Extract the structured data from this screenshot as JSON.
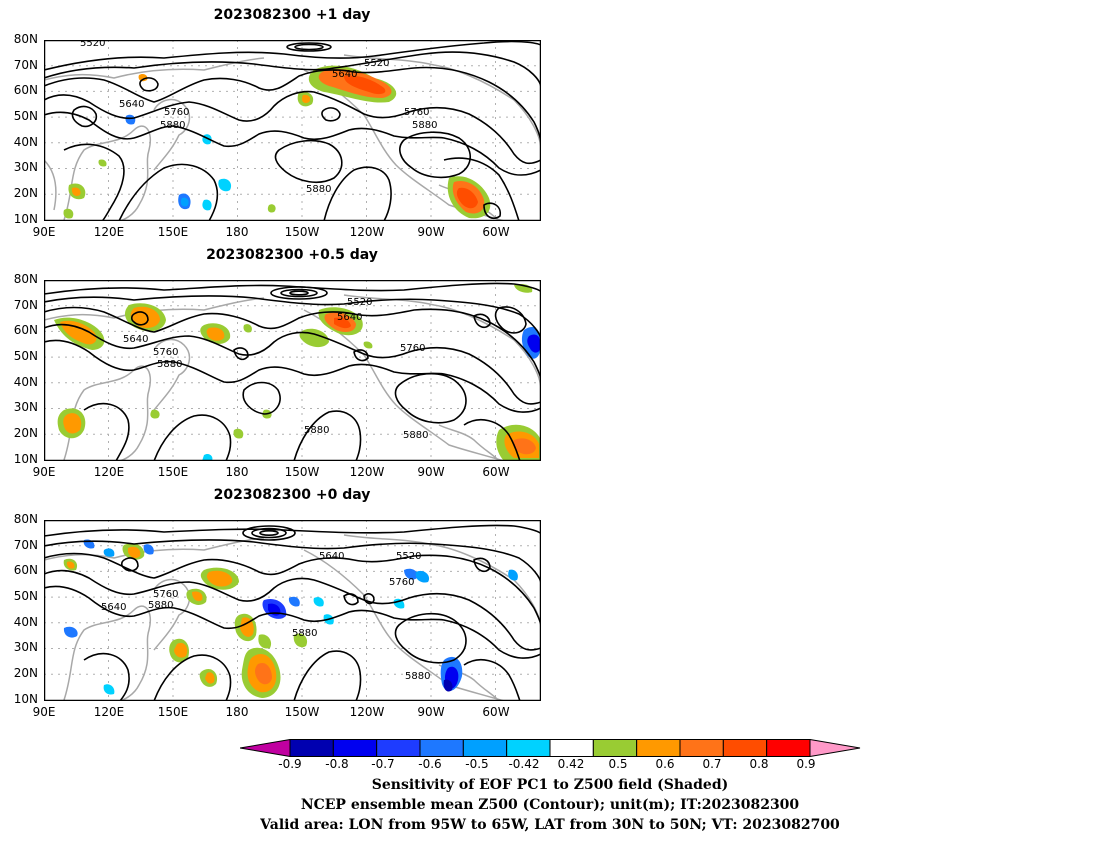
{
  "panels": [
    {
      "title": "2023082300  +1 day",
      "contour_labels": [
        "5520",
        "5520",
        "5640",
        "5640",
        "5760",
        "5760",
        "5880",
        "5880",
        "5880"
      ]
    },
    {
      "title": "2023082300  +0.5 day",
      "contour_labels": [
        "5520",
        "5640",
        "5640",
        "5760",
        "5760",
        "5880",
        "5880",
        "5880"
      ]
    },
    {
      "title": "2023082300  +0 day",
      "contour_labels": [
        "5640",
        "5520",
        "5760",
        "5760",
        "5640",
        "5880",
        "5880",
        "5880"
      ]
    }
  ],
  "lat_ticks": [
    "80N",
    "70N",
    "60N",
    "50N",
    "40N",
    "30N",
    "20N",
    "10N"
  ],
  "lon_ticks": [
    "90E",
    "120E",
    "150E",
    "180",
    "150W",
    "120W",
    "90W",
    "60W"
  ],
  "colorbar": {
    "labels": [
      "-0.9",
      "-0.8",
      "-0.7",
      "-0.6",
      "-0.5",
      "-0.42",
      "0.42",
      "0.5",
      "0.6",
      "0.7",
      "0.8",
      "0.9"
    ],
    "colors": [
      "#0000b0",
      "#0000f0",
      "#1e3cff",
      "#1e78ff",
      "#00a0ff",
      "#00d2ff",
      "#ffffff",
      "#99cc33",
      "#ff9900",
      "#ff7318",
      "#ff4d00",
      "#ff0000"
    ],
    "low_end_color": "#c000a0",
    "high_end_color": "#ff99c8"
  },
  "caption": {
    "line1": "Sensitivity of EOF PC1 to Z500 field (Shaded)",
    "line2": "NCEP ensemble mean Z500 (Contour); unit(m); IT:2023082300",
    "line3": "Valid area: LON from 95W to 65W, LAT from 30N to 50N; VT: 2023082700"
  }
}
